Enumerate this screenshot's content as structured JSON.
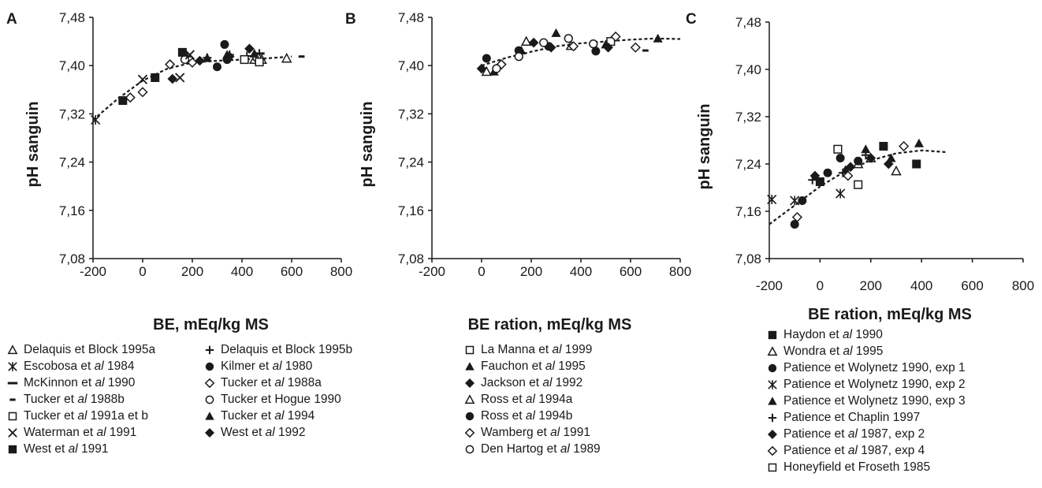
{
  "colors": {
    "ink": "#1a1a1a"
  },
  "chart_data": [
    {
      "type": "scatter",
      "panel": "A",
      "xlabel": "BE, mEq/kg MS",
      "ylabel": "pH sanguin",
      "xlim": [
        -200,
        800
      ],
      "ylim": [
        7.08,
        7.48
      ],
      "x_ticks": [
        "-200",
        "0",
        "200",
        "400",
        "600",
        "800"
      ],
      "y_ticks": [
        "7,08",
        "7,16",
        "7,24",
        "7,32",
        "7,40",
        "7,48"
      ],
      "trend": [
        [
          -200,
          7.31
        ],
        [
          -100,
          7.345
        ],
        [
          0,
          7.375
        ],
        [
          100,
          7.395
        ],
        [
          200,
          7.405
        ],
        [
          300,
          7.408
        ],
        [
          400,
          7.41
        ],
        [
          500,
          7.412
        ],
        [
          600,
          7.415
        ]
      ],
      "series": [
        {
          "name": "Delaquis et Block 1995a",
          "marker": "triangle-open",
          "points": [
            [
              450,
              7.41
            ],
            [
              480,
              7.41
            ],
            [
              580,
              7.412
            ]
          ]
        },
        {
          "name": "Delaquis et Block 1995b",
          "marker": "plus",
          "points": [
            [
              180,
              7.415
            ],
            [
              260,
              7.413
            ],
            [
              350,
              7.418
            ],
            [
              420,
              7.416
            ],
            [
              470,
              7.42
            ]
          ]
        },
        {
          "name": "Escobosa et al 1984",
          "marker": "asterisk",
          "points": [
            [
              -190,
              7.31
            ]
          ]
        },
        {
          "name": "Kilmer et al 1980",
          "marker": "circle-filled",
          "points": [
            [
              300,
              7.398
            ],
            [
              330,
              7.435
            ],
            [
              340,
              7.41
            ]
          ]
        },
        {
          "name": "McKinnon et al 1990",
          "marker": "hbar",
          "points": [
            [
              470,
              7.42
            ]
          ]
        },
        {
          "name": "Tucker et al 1988a",
          "marker": "diamond-open",
          "points": [
            [
              -50,
              7.347
            ],
            [
              0,
              7.356
            ],
            [
              110,
              7.402
            ],
            [
              200,
              7.405
            ]
          ]
        },
        {
          "name": "Tucker et al 1988b",
          "marker": "dash",
          "points": [
            [
              640,
              7.415
            ]
          ]
        },
        {
          "name": "Tucker et Hogue 1990",
          "marker": "circle-open",
          "points": [
            [
              170,
              7.41
            ],
            [
              460,
              7.413
            ]
          ]
        },
        {
          "name": "Tucker et al 1991a et b",
          "marker": "square-open",
          "points": [
            [
              410,
              7.41
            ],
            [
              470,
              7.406
            ]
          ]
        },
        {
          "name": "Tucker et al 1994",
          "marker": "triangle-filled",
          "points": [
            [
              260,
              7.413
            ],
            [
              340,
              7.418
            ],
            [
              450,
              7.42
            ]
          ]
        },
        {
          "name": "Waterman et al 1991",
          "marker": "cross",
          "points": [
            [
              0,
              7.377
            ],
            [
              150,
              7.38
            ],
            [
              190,
              7.418
            ]
          ]
        },
        {
          "name": "West et al 1992",
          "marker": "diamond-filled",
          "points": [
            [
              120,
              7.378
            ],
            [
              230,
              7.408
            ],
            [
              350,
              7.415
            ],
            [
              430,
              7.428
            ]
          ]
        },
        {
          "name": "West et al 1991",
          "marker": "square-filled",
          "points": [
            [
              -80,
              7.342
            ],
            [
              50,
              7.38
            ],
            [
              160,
              7.422
            ]
          ]
        }
      ]
    },
    {
      "type": "scatter",
      "panel": "B",
      "xlabel": "BE ration, mEq/kg MS",
      "ylabel": "pH sanguin",
      "xlim": [
        -200,
        800
      ],
      "ylim": [
        7.08,
        7.48
      ],
      "x_ticks": [
        "-200",
        "0",
        "200",
        "400",
        "600",
        "800"
      ],
      "y_ticks": [
        "7,08",
        "7,16",
        "7,24",
        "7,32",
        "7,40",
        "7,48"
      ],
      "trend": [
        [
          0,
          7.4
        ],
        [
          100,
          7.413
        ],
        [
          200,
          7.423
        ],
        [
          300,
          7.432
        ],
        [
          400,
          7.437
        ],
        [
          500,
          7.44
        ],
        [
          600,
          7.443
        ],
        [
          700,
          7.445
        ],
        [
          800,
          7.444
        ]
      ],
      "series": [
        {
          "name": "La Manna et al 1999",
          "marker": "square-open",
          "points": [
            [
              520,
              7.44
            ]
          ]
        },
        {
          "name": "Fauchon et al 1995",
          "marker": "triangle-filled",
          "points": [
            [
              50,
              7.39
            ],
            [
              160,
              7.425
            ],
            [
              300,
              7.454
            ],
            [
              500,
              7.435
            ],
            [
              710,
              7.445
            ]
          ]
        },
        {
          "name": "Jackson et al 1992",
          "marker": "diamond-filled",
          "points": [
            [
              0,
              7.395
            ],
            [
              210,
              7.438
            ],
            [
              280,
              7.43
            ],
            [
              510,
              7.43
            ]
          ]
        },
        {
          "name": "Ross et al 1994a",
          "marker": "triangle-open",
          "points": [
            [
              20,
              7.39
            ],
            [
              180,
              7.44
            ],
            [
              360,
              7.433
            ]
          ]
        },
        {
          "name": "Ross et al 1994b",
          "marker": "circle-filled",
          "points": [
            [
              20,
              7.412
            ],
            [
              150,
              7.425
            ],
            [
              270,
              7.432
            ],
            [
              460,
              7.424
            ]
          ]
        },
        {
          "name": "Wamberg et al 1991",
          "marker": "diamond-open",
          "points": [
            [
              80,
              7.402
            ],
            [
              370,
              7.432
            ],
            [
              540,
              7.448
            ],
            [
              620,
              7.43
            ]
          ]
        },
        {
          "name": "Den Hartog et al 1989",
          "marker": "circle-open",
          "points": [
            [
              60,
              7.395
            ],
            [
              150,
              7.415
            ],
            [
              250,
              7.438
            ],
            [
              350,
              7.445
            ],
            [
              450,
              7.436
            ]
          ]
        },
        {
          "name": "",
          "marker": "dash",
          "points": [
            [
              660,
              7.425
            ]
          ]
        }
      ]
    },
    {
      "type": "scatter",
      "panel": "C",
      "xlabel": "BE ration, mEq/kg MS",
      "ylabel": "pH sanguin",
      "xlim": [
        -200,
        800
      ],
      "ylim": [
        7.08,
        7.48
      ],
      "x_ticks": [
        "-200",
        "0",
        "200",
        "400",
        "600",
        "800"
      ],
      "y_ticks": [
        "7,08",
        "7,16",
        "7,24",
        "7,32",
        "7,40",
        "7,48"
      ],
      "trend": [
        [
          -200,
          7.138
        ],
        [
          -100,
          7.17
        ],
        [
          0,
          7.202
        ],
        [
          100,
          7.228
        ],
        [
          200,
          7.246
        ],
        [
          300,
          7.258
        ],
        [
          400,
          7.263
        ],
        [
          500,
          7.26
        ]
      ],
      "series": [
        {
          "name": "Haydon et al 1990",
          "marker": "square-filled",
          "points": [
            [
              0,
              7.21
            ],
            [
              250,
              7.27
            ],
            [
              380,
              7.24
            ]
          ]
        },
        {
          "name": "Wondra et al 1995",
          "marker": "triangle-open",
          "points": [
            [
              150,
              7.24
            ],
            [
              200,
              7.25
            ],
            [
              300,
              7.228
            ]
          ]
        },
        {
          "name": "Patience et Wolynetz 1990, exp 1",
          "marker": "circle-filled",
          "points": [
            [
              -100,
              7.138
            ],
            [
              -70,
              7.178
            ],
            [
              30,
              7.225
            ],
            [
              80,
              7.25
            ],
            [
              150,
              7.245
            ]
          ]
        },
        {
          "name": "Patience et Wolynetz 1990, exp 2",
          "marker": "asterisk",
          "points": [
            [
              -190,
              7.18
            ],
            [
              -100,
              7.178
            ],
            [
              80,
              7.19
            ]
          ]
        },
        {
          "name": "Patience et Wolynetz 1990, exp 3",
          "marker": "triangle-filled",
          "points": [
            [
              100,
              7.23
            ],
            [
              180,
              7.265
            ],
            [
              280,
              7.25
            ],
            [
              390,
              7.275
            ]
          ]
        },
        {
          "name": "Patience et Chaplin 1997",
          "marker": "plus",
          "points": [
            [
              -30,
              7.213
            ],
            [
              90,
              7.225
            ],
            [
              180,
              7.255
            ]
          ]
        },
        {
          "name": "Patience et al 1987, exp 2",
          "marker": "diamond-filled",
          "points": [
            [
              -20,
              7.22
            ],
            [
              120,
              7.235
            ],
            [
              200,
              7.25
            ],
            [
              270,
              7.24
            ]
          ]
        },
        {
          "name": "Patience et al 1987, exp 4",
          "marker": "diamond-open",
          "points": [
            [
              -90,
              7.15
            ],
            [
              110,
              7.22
            ],
            [
              330,
              7.27
            ]
          ]
        },
        {
          "name": "Honeyfield et Froseth 1985",
          "marker": "square-open",
          "points": [
            [
              70,
              7.265
            ],
            [
              150,
              7.205
            ]
          ]
        }
      ]
    }
  ]
}
